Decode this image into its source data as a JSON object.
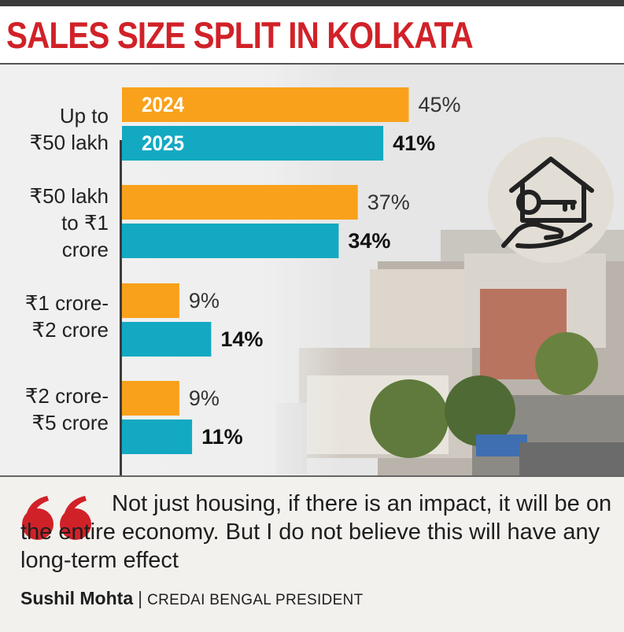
{
  "title": "SALES SIZE SPLIT IN KOLKATA",
  "colors": {
    "y2024": "#f9a11b",
    "y2025": "#13a9c2",
    "title": "#d12128"
  },
  "chart_data": {
    "type": "bar",
    "orientation": "horizontal",
    "title": "SALES SIZE SPLIT IN KOLKATA",
    "categories": [
      "Up to\n₹50 lakh",
      "₹50 lakh\nto ₹1\ncrore",
      "₹1 crore-\n₹2 crore",
      "₹2 crore-\n₹5 crore"
    ],
    "series": [
      {
        "name": "2024",
        "values": [
          45,
          37,
          9,
          9
        ],
        "labels": [
          "45%",
          "37%",
          "9%",
          "9%"
        ]
      },
      {
        "name": "2025",
        "values": [
          41,
          34,
          14,
          11
        ],
        "labels": [
          "41%",
          "34%",
          "14%",
          "11%"
        ]
      }
    ],
    "unit": "%",
    "xlim": [
      0,
      100
    ],
    "grid": false,
    "legend": "inside first bars"
  },
  "quote": {
    "text": "Not just housing, if there is an impact, it will be on the entire economy. But I do not believe this will have any long-term effect",
    "name": "Sushil Mohta",
    "separator": "|",
    "role": "CREDAI BENGAL PRESIDENT"
  },
  "icons": {
    "illustration": "house-key-hand-icon",
    "quote": "quote-mark-icon"
  }
}
